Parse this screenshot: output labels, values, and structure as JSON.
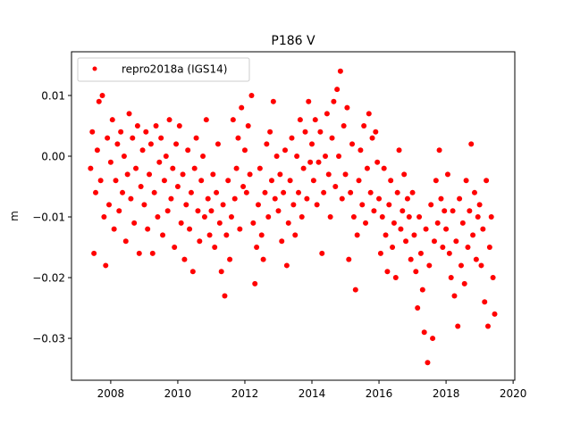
{
  "chart_data": {
    "type": "scatter",
    "title": "P186 V",
    "xlabel": "",
    "ylabel": "m",
    "xlim": [
      2006.83,
      2020.05
    ],
    "ylim": [
      -0.0369,
      0.0172
    ],
    "xticks": [
      2008,
      2010,
      2012,
      2014,
      2016,
      2018,
      2020
    ],
    "xtick_labels": [
      "2008",
      "2010",
      "2012",
      "2014",
      "2016",
      "2018",
      "2020"
    ],
    "yticks": [
      0.01,
      0.0,
      -0.01,
      -0.02,
      -0.03
    ],
    "ytick_labels": [
      "0.01",
      "0.00",
      "−0.01",
      "−0.02",
      "−0.03"
    ],
    "grid": false,
    "legend_placement": "upper-left",
    "series": [
      {
        "name": "repro2018a (IGS14)",
        "color": "#ff0000",
        "marker": "circle",
        "x": [
          2007.4,
          2007.45,
          2007.5,
          2007.55,
          2007.6,
          2007.65,
          2007.7,
          2007.75,
          2007.8,
          2007.85,
          2007.9,
          2007.95,
          2008.0,
          2008.05,
          2008.1,
          2008.15,
          2008.2,
          2008.25,
          2008.3,
          2008.35,
          2008.4,
          2008.45,
          2008.5,
          2008.55,
          2008.6,
          2008.65,
          2008.7,
          2008.75,
          2008.8,
          2008.85,
          2008.9,
          2008.95,
          2009.0,
          2009.05,
          2009.1,
          2009.15,
          2009.2,
          2009.25,
          2009.3,
          2009.35,
          2009.4,
          2009.45,
          2009.5,
          2009.55,
          2009.6,
          2009.65,
          2009.7,
          2009.75,
          2009.8,
          2009.85,
          2009.9,
          2009.95,
          2010.0,
          2010.05,
          2010.1,
          2010.15,
          2010.2,
          2010.25,
          2010.3,
          2010.35,
          2010.4,
          2010.45,
          2010.5,
          2010.55,
          2010.6,
          2010.65,
          2010.7,
          2010.75,
          2010.8,
          2010.85,
          2010.9,
          2010.95,
          2011.0,
          2011.05,
          2011.1,
          2011.15,
          2011.2,
          2011.25,
          2011.3,
          2011.35,
          2011.4,
          2011.45,
          2011.5,
          2011.55,
          2011.6,
          2011.65,
          2011.7,
          2011.75,
          2011.8,
          2011.85,
          2011.9,
          2011.95,
          2012.0,
          2012.05,
          2012.1,
          2012.15,
          2012.2,
          2012.25,
          2012.3,
          2012.35,
          2012.4,
          2012.45,
          2012.5,
          2012.55,
          2012.6,
          2012.65,
          2012.7,
          2012.75,
          2012.8,
          2012.85,
          2012.9,
          2012.95,
          2013.0,
          2013.05,
          2013.1,
          2013.15,
          2013.2,
          2013.25,
          2013.3,
          2013.35,
          2013.4,
          2013.45,
          2013.5,
          2013.55,
          2013.6,
          2013.65,
          2013.7,
          2013.75,
          2013.8,
          2013.85,
          2013.9,
          2013.95,
          2014.0,
          2014.05,
          2014.1,
          2014.15,
          2014.2,
          2014.25,
          2014.3,
          2014.35,
          2014.4,
          2014.45,
          2014.5,
          2014.55,
          2014.6,
          2014.65,
          2014.7,
          2014.75,
          2014.8,
          2014.85,
          2014.9,
          2014.95,
          2015.0,
          2015.05,
          2015.1,
          2015.15,
          2015.2,
          2015.25,
          2015.3,
          2015.35,
          2015.4,
          2015.45,
          2015.5,
          2015.55,
          2015.6,
          2015.65,
          2015.7,
          2015.75,
          2015.8,
          2015.85,
          2015.9,
          2015.95,
          2016.0,
          2016.05,
          2016.1,
          2016.15,
          2016.2,
          2016.25,
          2016.3,
          2016.35,
          2016.4,
          2016.45,
          2016.5,
          2016.55,
          2016.6,
          2016.65,
          2016.7,
          2016.75,
          2016.8,
          2016.85,
          2016.9,
          2016.95,
          2017.0,
          2017.05,
          2017.1,
          2017.15,
          2017.2,
          2017.25,
          2017.3,
          2017.35,
          2017.4,
          2017.45,
          2017.5,
          2017.55,
          2017.6,
          2017.65,
          2017.7,
          2017.75,
          2017.8,
          2017.85,
          2017.9,
          2017.95,
          2018.0,
          2018.05,
          2018.1,
          2018.15,
          2018.2,
          2018.25,
          2018.3,
          2018.35,
          2018.4,
          2018.45,
          2018.5,
          2018.55,
          2018.6,
          2018.65,
          2018.7,
          2018.75,
          2018.8,
          2018.85,
          2018.9,
          2018.95,
          2019.0,
          2019.05,
          2019.1,
          2019.15,
          2019.2,
          2019.25,
          2019.3,
          2019.35,
          2019.4,
          2019.45
        ],
        "y": [
          -0.002,
          0.004,
          -0.016,
          -0.006,
          0.001,
          0.009,
          -0.004,
          0.01,
          -0.01,
          -0.018,
          0.003,
          -0.008,
          -0.001,
          0.006,
          -0.012,
          -0.004,
          0.002,
          -0.009,
          0.004,
          -0.006,
          0.0,
          -0.014,
          -0.003,
          0.007,
          -0.007,
          0.003,
          -0.011,
          -0.002,
          0.005,
          -0.016,
          -0.005,
          0.001,
          -0.008,
          0.004,
          -0.012,
          -0.003,
          0.002,
          -0.016,
          -0.006,
          0.005,
          -0.01,
          -0.001,
          0.003,
          -0.013,
          -0.004,
          0.0,
          -0.009,
          0.006,
          -0.007,
          -0.002,
          -0.015,
          0.002,
          -0.005,
          0.005,
          -0.011,
          -0.003,
          -0.017,
          -0.008,
          0.001,
          -0.012,
          -0.006,
          -0.019,
          -0.002,
          0.003,
          -0.009,
          -0.014,
          -0.004,
          0.0,
          -0.01,
          0.006,
          -0.007,
          -0.013,
          -0.009,
          -0.003,
          -0.015,
          -0.006,
          0.002,
          -0.011,
          -0.019,
          -0.008,
          -0.023,
          -0.013,
          -0.004,
          -0.017,
          -0.01,
          0.006,
          -0.007,
          -0.002,
          0.003,
          -0.012,
          0.008,
          -0.005,
          0.001,
          -0.006,
          0.005,
          -0.003,
          0.01,
          -0.011,
          -0.021,
          -0.015,
          -0.008,
          -0.002,
          -0.013,
          -0.017,
          -0.006,
          0.002,
          -0.01,
          0.004,
          -0.004,
          0.009,
          -0.007,
          0.0,
          -0.009,
          -0.003,
          -0.014,
          -0.006,
          0.001,
          -0.018,
          -0.011,
          -0.004,
          0.003,
          -0.008,
          -0.013,
          0.0,
          -0.006,
          0.006,
          -0.01,
          -0.002,
          0.004,
          -0.007,
          0.009,
          -0.001,
          0.002,
          -0.004,
          0.006,
          -0.008,
          -0.001,
          0.004,
          -0.016,
          -0.006,
          0.0,
          0.007,
          -0.003,
          -0.01,
          0.003,
          0.009,
          -0.005,
          0.011,
          0.0,
          0.014,
          -0.007,
          0.005,
          -0.003,
          0.008,
          -0.017,
          -0.006,
          0.002,
          -0.01,
          -0.022,
          -0.013,
          -0.004,
          0.001,
          -0.008,
          0.005,
          -0.011,
          -0.002,
          0.007,
          -0.006,
          0.003,
          -0.009,
          0.004,
          -0.001,
          -0.007,
          -0.016,
          -0.01,
          -0.002,
          -0.013,
          -0.019,
          -0.008,
          -0.004,
          -0.015,
          -0.011,
          -0.02,
          -0.006,
          0.001,
          -0.012,
          -0.009,
          -0.003,
          -0.014,
          -0.007,
          -0.01,
          -0.017,
          -0.006,
          -0.013,
          -0.019,
          -0.025,
          -0.01,
          -0.016,
          -0.022,
          -0.029,
          -0.012,
          -0.034,
          -0.018,
          -0.008,
          -0.03,
          -0.014,
          -0.004,
          -0.011,
          0.001,
          -0.007,
          -0.015,
          -0.009,
          -0.012,
          -0.003,
          -0.016,
          -0.02,
          -0.009,
          -0.023,
          -0.014,
          -0.028,
          -0.007,
          -0.018,
          -0.011,
          -0.021,
          -0.004,
          -0.015,
          -0.009,
          0.002,
          -0.013,
          -0.006,
          -0.017,
          -0.01,
          -0.008,
          -0.018,
          -0.012,
          -0.024,
          -0.004,
          -0.028,
          -0.015,
          -0.01,
          -0.02,
          -0.026
        ]
      }
    ]
  }
}
